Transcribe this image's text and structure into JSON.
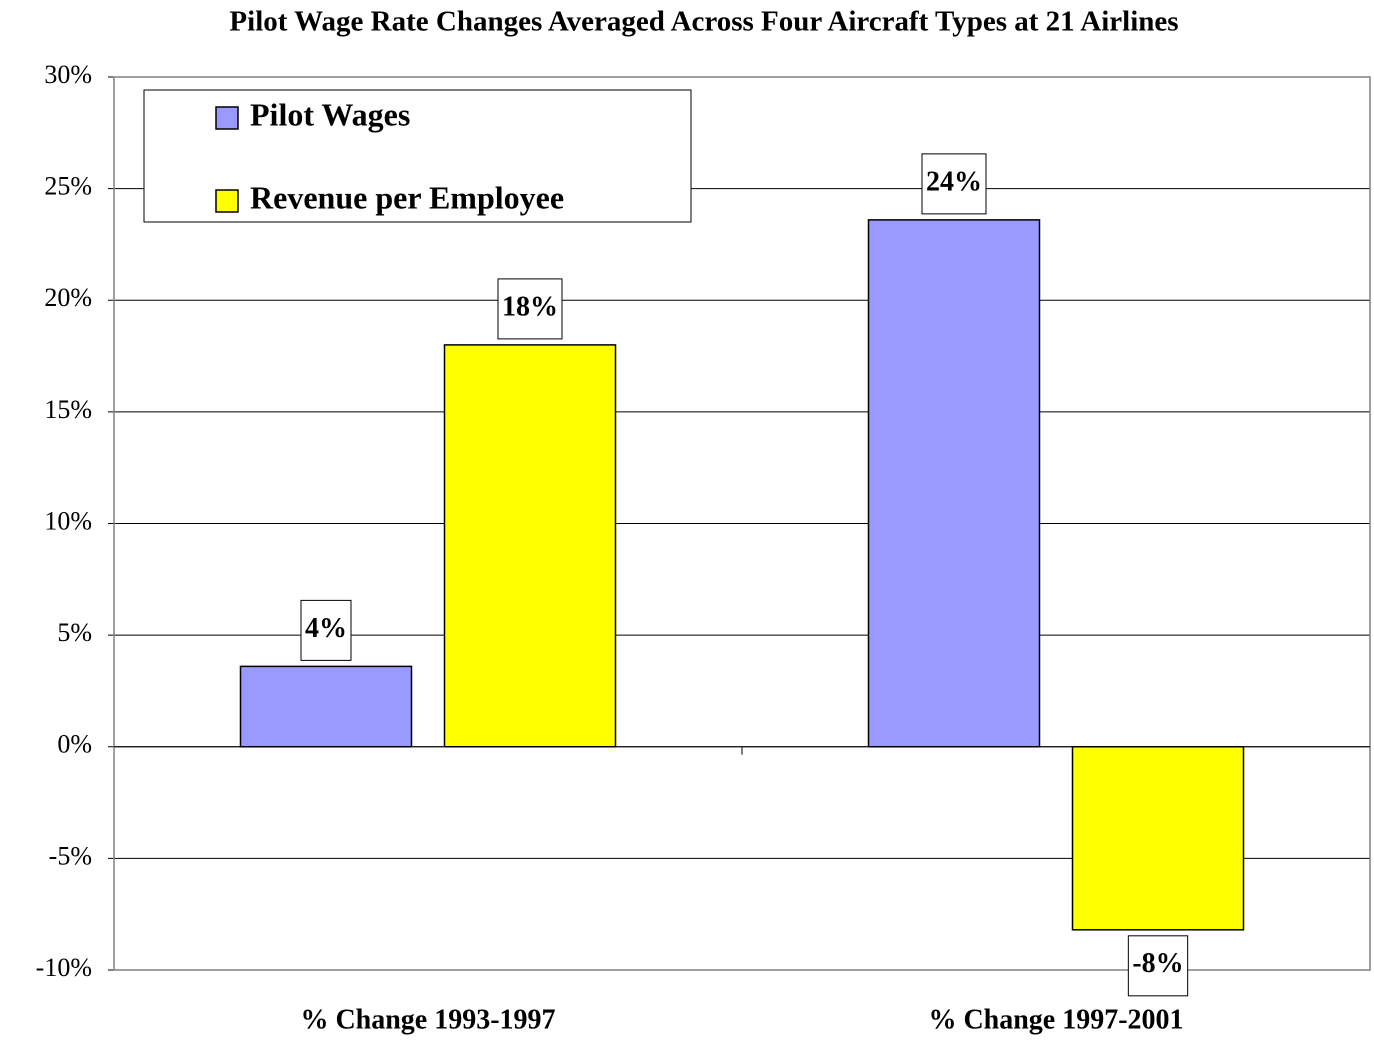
{
  "chart_data": {
    "type": "bar",
    "title": "Pilot Wage Rate Changes Averaged Across Four Aircraft Types at 21 Airlines",
    "categories": [
      "% Change 1993-1997",
      "% Change 1997-2001"
    ],
    "series": [
      {
        "name": "Pilot Wages",
        "color": "#9999ff",
        "values": [
          3.6,
          23.6
        ],
        "value_labels": [
          "4%",
          "24%"
        ]
      },
      {
        "name": "Revenue per Employee",
        "color": "#ffff00",
        "values": [
          18,
          -8.2
        ],
        "value_labels": [
          "18%",
          "-8%"
        ]
      }
    ],
    "ylim": [
      -10,
      30
    ],
    "yticks": [
      {
        "value": -10,
        "label": "-10%"
      },
      {
        "value": -5,
        "label": "-5%"
      },
      {
        "value": 0,
        "label": "0%"
      },
      {
        "value": 5,
        "label": "5%"
      },
      {
        "value": 10,
        "label": "10%"
      },
      {
        "value": 15,
        "label": "15%"
      },
      {
        "value": 20,
        "label": "20%"
      },
      {
        "value": 25,
        "label": "25%"
      },
      {
        "value": 30,
        "label": "30%"
      }
    ],
    "grid": true,
    "legend": "upper-left"
  }
}
